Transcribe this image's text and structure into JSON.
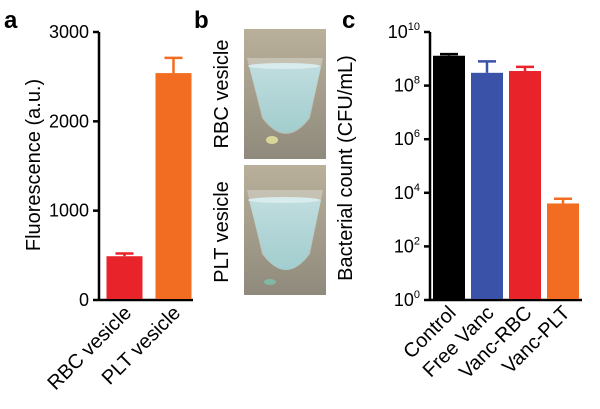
{
  "panels": {
    "a": "a",
    "b": "b",
    "c": "c"
  },
  "photo_labels": {
    "top": "RBC vesicle",
    "bottom": "PLT vesicle"
  },
  "chart_data": [
    {
      "type": "bar",
      "categories": [
        "RBC vesicle",
        "PLT vesicle"
      ],
      "values": [
        490,
        2540
      ],
      "errors": [
        30,
        170
      ],
      "colors": [
        "#e8232a",
        "#f26c22"
      ],
      "ylabel": "Fluorescence (a.u.)",
      "ylim": [
        0,
        3000
      ],
      "yticks": [
        0,
        1000,
        2000,
        3000
      ],
      "ytick_labels": [
        "0",
        "1000",
        "2000",
        "3000"
      ],
      "grid": false
    },
    {
      "type": "bar",
      "categories": [
        "Control",
        "Free Vanc",
        "Vanc-RBC",
        "Vanc-PLT"
      ],
      "values": [
        1300000000.0,
        300000000.0,
        350000000.0,
        4000.0
      ],
      "errors_upper": [
        1500000000.0,
        800000000.0,
        500000000.0,
        6000.0
      ],
      "colors": [
        "#000000",
        "#3a52a8",
        "#e8232a",
        "#f26c22"
      ],
      "ylabel": "Bacterial count (CFU/mL)",
      "yscale": "log",
      "ylim": [
        1,
        10000000000.0
      ],
      "ytick_exponents": [
        "0",
        "2",
        "4",
        "6",
        "8",
        "10"
      ],
      "ytick_base": "10",
      "grid": false
    }
  ]
}
